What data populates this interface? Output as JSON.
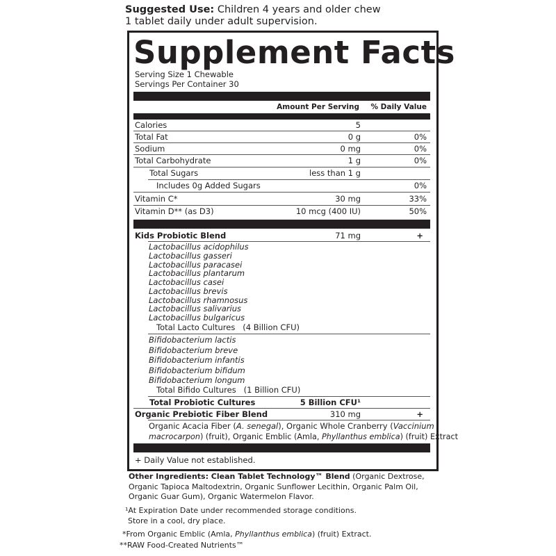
{
  "suggested_use": {
    "label": "Suggested Use:",
    "line1": " Children 4 years and older chew",
    "line2": "1 tablet daily under adult supervision."
  },
  "title": "Supplement Facts",
  "serving_size": "Serving Size 1 Chewable",
  "servings_per_container": "Servings Per Container 30",
  "header": {
    "amount": "Amount Per Serving",
    "dv": "% Daily Value"
  },
  "nutrients": [
    {
      "label": "Calories",
      "amount": "5",
      "dv": ""
    },
    {
      "label": "Total Fat",
      "amount": "0 g",
      "dv": "0%"
    },
    {
      "label": "Sodium",
      "amount": "0 mg",
      "dv": "0%"
    },
    {
      "label": "Total Carbohydrate",
      "amount": "1 g",
      "dv": "0%"
    },
    {
      "label": "Total Sugars",
      "amount": "less than 1 g",
      "dv": ""
    },
    {
      "label": "Includes 0g Added Sugars",
      "amount": "",
      "dv": "0%"
    },
    {
      "label": "Vitamin C*",
      "amount": "30 mg",
      "dv": "33%"
    },
    {
      "label": "Vitamin D** (as D3)",
      "amount": "10 mcg (400 IU)",
      "dv": "50%"
    }
  ],
  "probiotic_blend": {
    "label": "Kids Probiotic Blend",
    "amount": "71 mg",
    "dv": "+"
  },
  "lacto_strains": [
    "Lactobacillus acidophilus",
    "Lactobacillus gasseri",
    "Lactobacillus paracasei",
    "Lactobacillus plantarum",
    "Lactobacillus casei",
    "Lactobacillus brevis",
    "Lactobacillus rhamnosus",
    "Lactobacillus salivarius",
    "Lactobacillus bulgaricus"
  ],
  "lacto_total": "Total Lacto Cultures   (4 Billion CFU)",
  "bifido_strains": [
    "Bifidobacterium lactis",
    "Bifidobacterium breve",
    "Bifidobacterium infantis",
    "Bifidobacterium bifidum",
    "Bifidobacterium longum"
  ],
  "bifido_total": "Total Bifido Cultures   (1 Billion CFU)",
  "total_probiotic": {
    "label": "Total Probiotic Cultures",
    "amount": "5 Billion CFU¹"
  },
  "prebiotic_blend": {
    "label": "Organic Prebiotic Fiber Blend",
    "amount": "310 mg",
    "dv": "+"
  },
  "prebiotic_desc": {
    "p1": "Organic Acacia Fiber (",
    "i1": "A. senegal",
    "p2": "), Organic Whole Cranberry (",
    "i2": "Vaccinium",
    "i3": "macrocarpon",
    "p3": ") (fruit), Organic Emblic (Amla, ",
    "i4": "Phyllanthus emblica",
    "p4": ") (fruit) Extract"
  },
  "dv_note": "+ Daily Value not established.",
  "other_ingredients": {
    "label": "Other Ingredients: Clean Tablet Technology™ Blend",
    "line1": " (Organic Dextrose,",
    "line2": "Organic Tapioca Maltodextrin, Organic Sunflower Lecithin, Organic Palm Oil,",
    "line3": "Organic Guar Gum), Organic Watermelon Flavor."
  },
  "footnotes": {
    "f1a": "¹At Expiration Date under recommended storage conditions.",
    "f1b": "Store in a cool, dry place.",
    "f2a": "*From Organic Emblic (Amla, ",
    "f2i": "Phyllanthus emblica",
    "f2b": ") (fruit) Extract.",
    "f3": "**RAW Food-Created Nutrients™"
  }
}
